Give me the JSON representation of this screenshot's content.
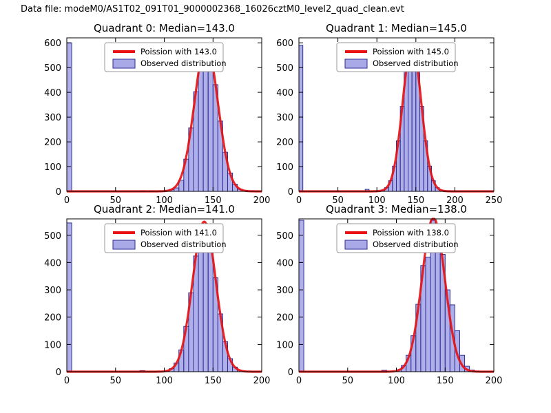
{
  "figure_title": "Data file: modeM0/AS1T02_091T01_9000002368_16026cztM0_level2_quad_clean.evt",
  "colors": {
    "background": "#ffffff",
    "bar_fill": "#8484dd",
    "bar_edge": "#2d2d96",
    "curve_red": "#e81010",
    "axis": "#000000",
    "legend_border": "#999999",
    "legend_bg": "#ffffff"
  },
  "chart_data": [
    {
      "type": "bar",
      "subtype": "histogram-with-poisson-fit",
      "title": "Quadrant 0: Median=143.0",
      "median": 143.0,
      "legend": {
        "line_label": "Poission with 143.0",
        "patch_label": "Observed distribution",
        "loc": "upper center"
      },
      "xlim": [
        0,
        200
      ],
      "xticks": [
        0,
        50,
        100,
        150,
        200
      ],
      "ylim": [
        0,
        620
      ],
      "yticks": [
        0,
        100,
        200,
        300,
        400,
        500,
        600
      ],
      "bin_width": 5,
      "bars": [
        [
          0,
          600
        ],
        [
          75,
          2
        ],
        [
          85,
          2
        ],
        [
          100,
          3
        ],
        [
          105,
          8
        ],
        [
          110,
          14
        ],
        [
          115,
          45
        ],
        [
          120,
          130
        ],
        [
          125,
          256
        ],
        [
          130,
          402
        ],
        [
          135,
          531
        ],
        [
          140,
          590
        ],
        [
          145,
          550
        ],
        [
          150,
          431
        ],
        [
          155,
          284
        ],
        [
          160,
          158
        ],
        [
          165,
          74
        ],
        [
          170,
          29
        ],
        [
          175,
          9
        ],
        [
          180,
          3
        ]
      ],
      "fit_curve": {
        "mu": 143,
        "sigma": 12,
        "peak": 595
      }
    },
    {
      "type": "bar",
      "subtype": "histogram-with-poisson-fit",
      "title": "Quadrant 1: Median=145.0",
      "median": 145.0,
      "legend": {
        "line_label": "Poission with 145.0",
        "patch_label": "Observed distribution",
        "loc": "upper center"
      },
      "xlim": [
        0,
        250
      ],
      "xticks": [
        0,
        50,
        100,
        150,
        200,
        250
      ],
      "ylim": [
        0,
        620
      ],
      "yticks": [
        0,
        100,
        200,
        300,
        400,
        500,
        600
      ],
      "bin_width": 5,
      "bars": [
        [
          0,
          590
        ],
        [
          85,
          8
        ],
        [
          105,
          4
        ],
        [
          110,
          15
        ],
        [
          115,
          43
        ],
        [
          120,
          102
        ],
        [
          125,
          204
        ],
        [
          130,
          343
        ],
        [
          135,
          486
        ],
        [
          140,
          578
        ],
        [
          145,
          578
        ],
        [
          150,
          486
        ],
        [
          155,
          343
        ],
        [
          160,
          204
        ],
        [
          165,
          102
        ],
        [
          170,
          43
        ],
        [
          175,
          15
        ],
        [
          180,
          4
        ],
        [
          185,
          1
        ]
      ],
      "fit_curve": {
        "mu": 145,
        "sigma": 12,
        "peak": 590
      }
    },
    {
      "type": "bar",
      "subtype": "histogram-with-poisson-fit",
      "title": "Quadrant 2: Median=141.0",
      "median": 141.0,
      "legend": {
        "line_label": "Poission with 141.0",
        "patch_label": "Observed distribution",
        "loc": "upper center"
      },
      "xlim": [
        0,
        200
      ],
      "xticks": [
        0,
        50,
        100,
        150,
        200
      ],
      "ylim": [
        0,
        560
      ],
      "yticks": [
        0,
        100,
        200,
        300,
        400,
        500
      ],
      "bin_width": 5,
      "bars": [
        [
          0,
          545
        ],
        [
          75,
          4
        ],
        [
          100,
          3
        ],
        [
          105,
          11
        ],
        [
          110,
          32
        ],
        [
          115,
          80
        ],
        [
          120,
          166
        ],
        [
          125,
          289
        ],
        [
          130,
          424
        ],
        [
          135,
          522
        ],
        [
          140,
          541
        ],
        [
          145,
          471
        ],
        [
          150,
          344
        ],
        [
          155,
          212
        ],
        [
          160,
          110
        ],
        [
          165,
          48
        ],
        [
          170,
          17
        ],
        [
          175,
          5
        ],
        [
          180,
          2
        ]
      ],
      "fit_curve": {
        "mu": 141,
        "sigma": 11.9,
        "peak": 550
      }
    },
    {
      "type": "bar",
      "subtype": "histogram-with-poisson-fit",
      "title": "Quadrant 3: Median=138.0",
      "median": 138.0,
      "legend": {
        "line_label": "Poission with 138.0",
        "patch_label": "Observed distribution",
        "loc": "upper center"
      },
      "xlim": [
        0,
        200
      ],
      "xticks": [
        0,
        50,
        100,
        150,
        200
      ],
      "ylim": [
        0,
        560
      ],
      "yticks": [
        0,
        100,
        200,
        300,
        400,
        500
      ],
      "bin_width": 5,
      "bars": [
        [
          0,
          555
        ],
        [
          85,
          5
        ],
        [
          100,
          7
        ],
        [
          105,
          23
        ],
        [
          110,
          60
        ],
        [
          115,
          132
        ],
        [
          120,
          247
        ],
        [
          125,
          389
        ],
        [
          130,
          420
        ],
        [
          135,
          555
        ],
        [
          140,
          540
        ],
        [
          145,
          430
        ],
        [
          150,
          300
        ],
        [
          155,
          245
        ],
        [
          160,
          150
        ],
        [
          165,
          60
        ],
        [
          170,
          20
        ],
        [
          175,
          6
        ],
        [
          180,
          2
        ]
      ],
      "fit_curve": {
        "mu": 138,
        "sigma": 11.7,
        "peak": 565
      }
    }
  ]
}
